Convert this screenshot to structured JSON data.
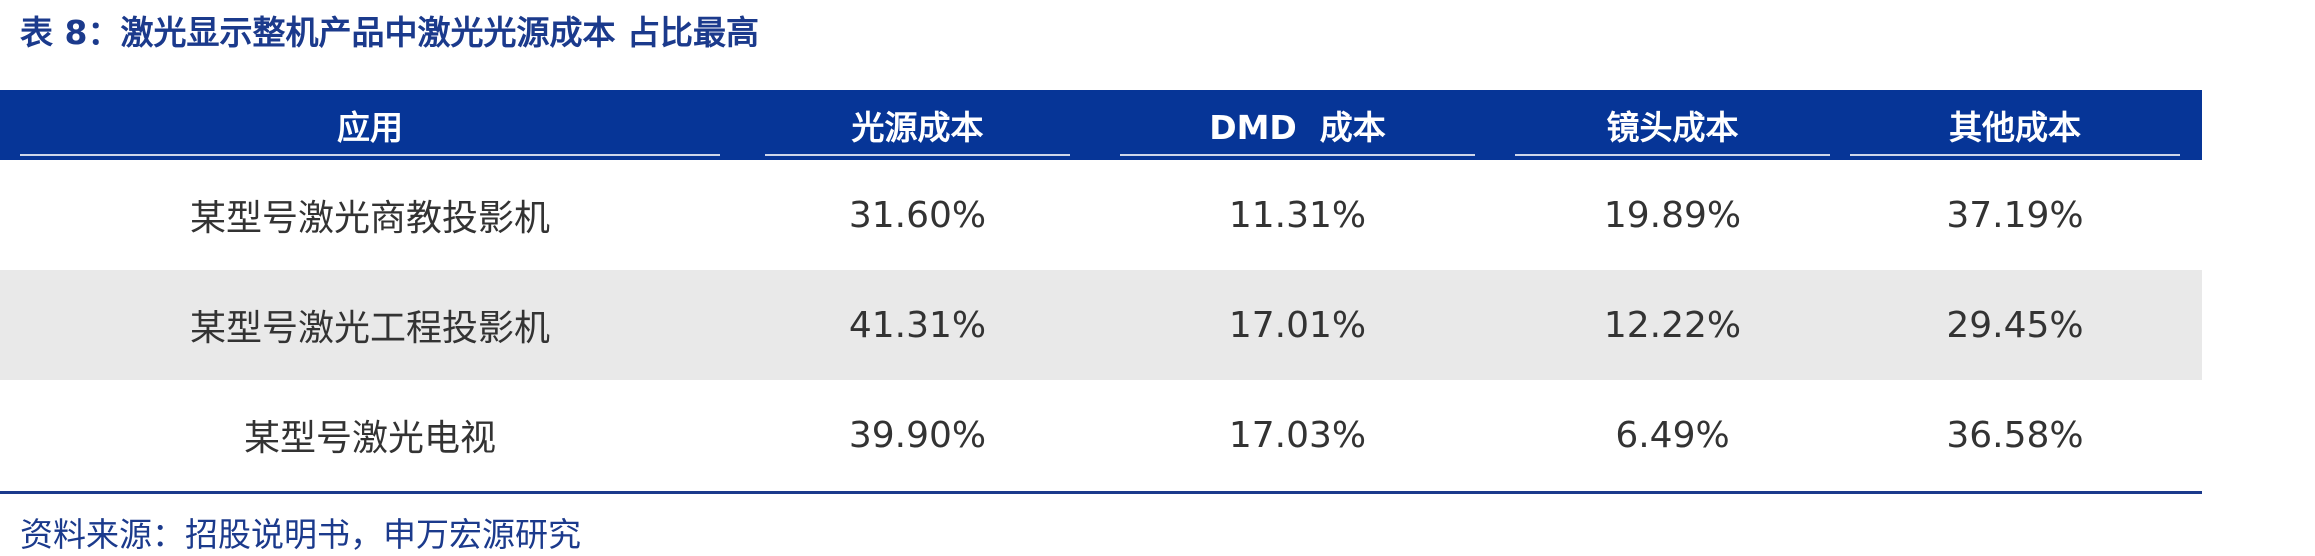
{
  "title": "表 8：激光显示整机产品中激光光源成本 占比最高",
  "table": {
    "header": [
      "应用",
      "光源成本",
      "DMD  成本",
      "镜头成本",
      "其他成本"
    ],
    "rows": [
      [
        "某型号激光商教投影机",
        "31.60%",
        "11.31%",
        "19.89%",
        "37.19%"
      ],
      [
        "某型号激光工程投影机",
        "41.31%",
        "17.01%",
        "12.22%",
        "29.45%"
      ],
      [
        "某型号激光电视",
        "39.90%",
        "17.03%",
        "6.49%",
        "36.58%"
      ]
    ]
  },
  "source": "资料来源：招股说明书，申万宏源研究"
}
